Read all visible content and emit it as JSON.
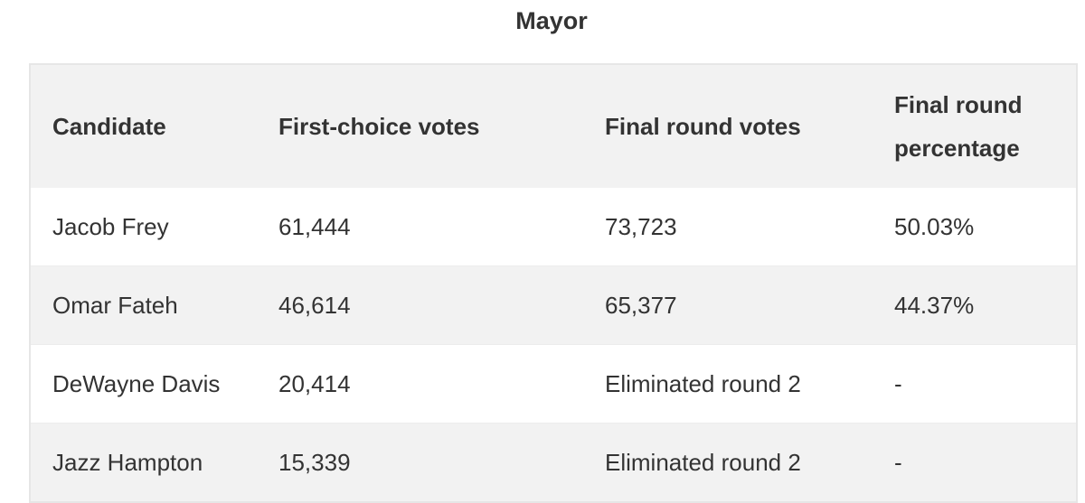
{
  "title": "Mayor",
  "table": {
    "header": [
      "Candidate",
      "First-choice votes",
      "Final round votes",
      "Final round percentage"
    ],
    "rows": [
      [
        "Jacob Frey",
        "61,444",
        "73,723",
        "50.03%"
      ],
      [
        "Omar Fateh",
        "46,614",
        "65,377",
        "44.37%"
      ],
      [
        "DeWayne Davis",
        "20,414",
        "Eliminated round 2",
        "-"
      ],
      [
        "Jazz Hampton",
        "15,339",
        "Eliminated round 2",
        "-"
      ]
    ]
  }
}
